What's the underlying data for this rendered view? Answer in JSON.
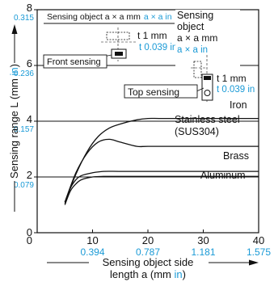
{
  "chart_data": {
    "type": "line",
    "xlabel": {
      "line1": "Sensing object side",
      "line2_prefix": "length a (mm ",
      "line2_unit": "in",
      "line2_suffix": ")"
    },
    "ylabel": {
      "prefix": "Sensing range L (mm ",
      "unit": "in",
      "suffix": ")"
    },
    "xlim": [
      0,
      40
    ],
    "ylim": [
      0,
      8
    ],
    "x_ticks": [
      {
        "mm": "0",
        "in": ""
      },
      {
        "mm": "10",
        "in": "0.394"
      },
      {
        "mm": "20",
        "in": "0.787"
      },
      {
        "mm": "30",
        "in": "1.181"
      },
      {
        "mm": "40",
        "in": "1.575"
      }
    ],
    "y_ticks": [
      {
        "value": 0,
        "mm": "0",
        "in": ""
      },
      {
        "value": 2,
        "mm": "2",
        "in": "0.079"
      },
      {
        "value": 4,
        "mm": "4",
        "in": "0.157"
      },
      {
        "value": 6,
        "mm": "6",
        "in": "0.236"
      },
      {
        "value": 8,
        "mm": "8",
        "in": "0.315"
      }
    ],
    "series": [
      {
        "name": "Iron",
        "x": [
          5,
          7,
          9,
          11,
          13,
          15,
          18,
          20,
          22,
          25,
          30,
          40
        ],
        "y": [
          1.1,
          2.1,
          2.9,
          3.45,
          3.75,
          3.9,
          4.05,
          4.1,
          4.1,
          4.1,
          4.1,
          4.1
        ]
      },
      {
        "name": "Stainless steel (SUS304)",
        "x": [
          5,
          7,
          9,
          11,
          13,
          15,
          18,
          20,
          25,
          30,
          40
        ],
        "y": [
          1.1,
          2.15,
          2.85,
          3.25,
          3.35,
          3.25,
          3.1,
          3.1,
          3.1,
          3.1,
          3.1
        ]
      },
      {
        "name": "Brass",
        "x": [
          5,
          6,
          7,
          8,
          10,
          12,
          15,
          20,
          30,
          40
        ],
        "y": [
          1.05,
          1.6,
          1.9,
          2.05,
          2.15,
          2.2,
          2.2,
          2.2,
          2.2,
          2.2
        ]
      },
      {
        "name": "Aluminum",
        "x": [
          5,
          6,
          7,
          8,
          10,
          12,
          15,
          20,
          30,
          40
        ],
        "y": [
          1.0,
          1.5,
          1.75,
          1.9,
          2.0,
          2.02,
          2.02,
          2.02,
          2.02,
          2.02
        ]
      }
    ],
    "series_labels": {
      "iron": "Iron",
      "stainless_line1": "Stainless steel",
      "stainless_line2": "(SUS304)",
      "brass": "Brass",
      "aluminum": "Aluminum"
    },
    "grid": "horizontal",
    "annotations": {
      "front": {
        "object_prefix": "Sensing object a × a mm",
        "object_in": "a × a in",
        "thickness_mm": "t 1 mm",
        "thickness_in": "t 0.039 in",
        "label": "Front sensing"
      },
      "top": {
        "object_line1": "Sensing",
        "object_line2": "object",
        "object_line3": "a × a mm",
        "object_in": "a × a in",
        "thickness_mm": "t 1 mm",
        "thickness_in": "t 0.039 in",
        "label": "Top sensing"
      }
    },
    "colors": {
      "text": "#111111",
      "inch": "#1a9ad6",
      "line": "#111111",
      "grid": "#111111"
    }
  }
}
